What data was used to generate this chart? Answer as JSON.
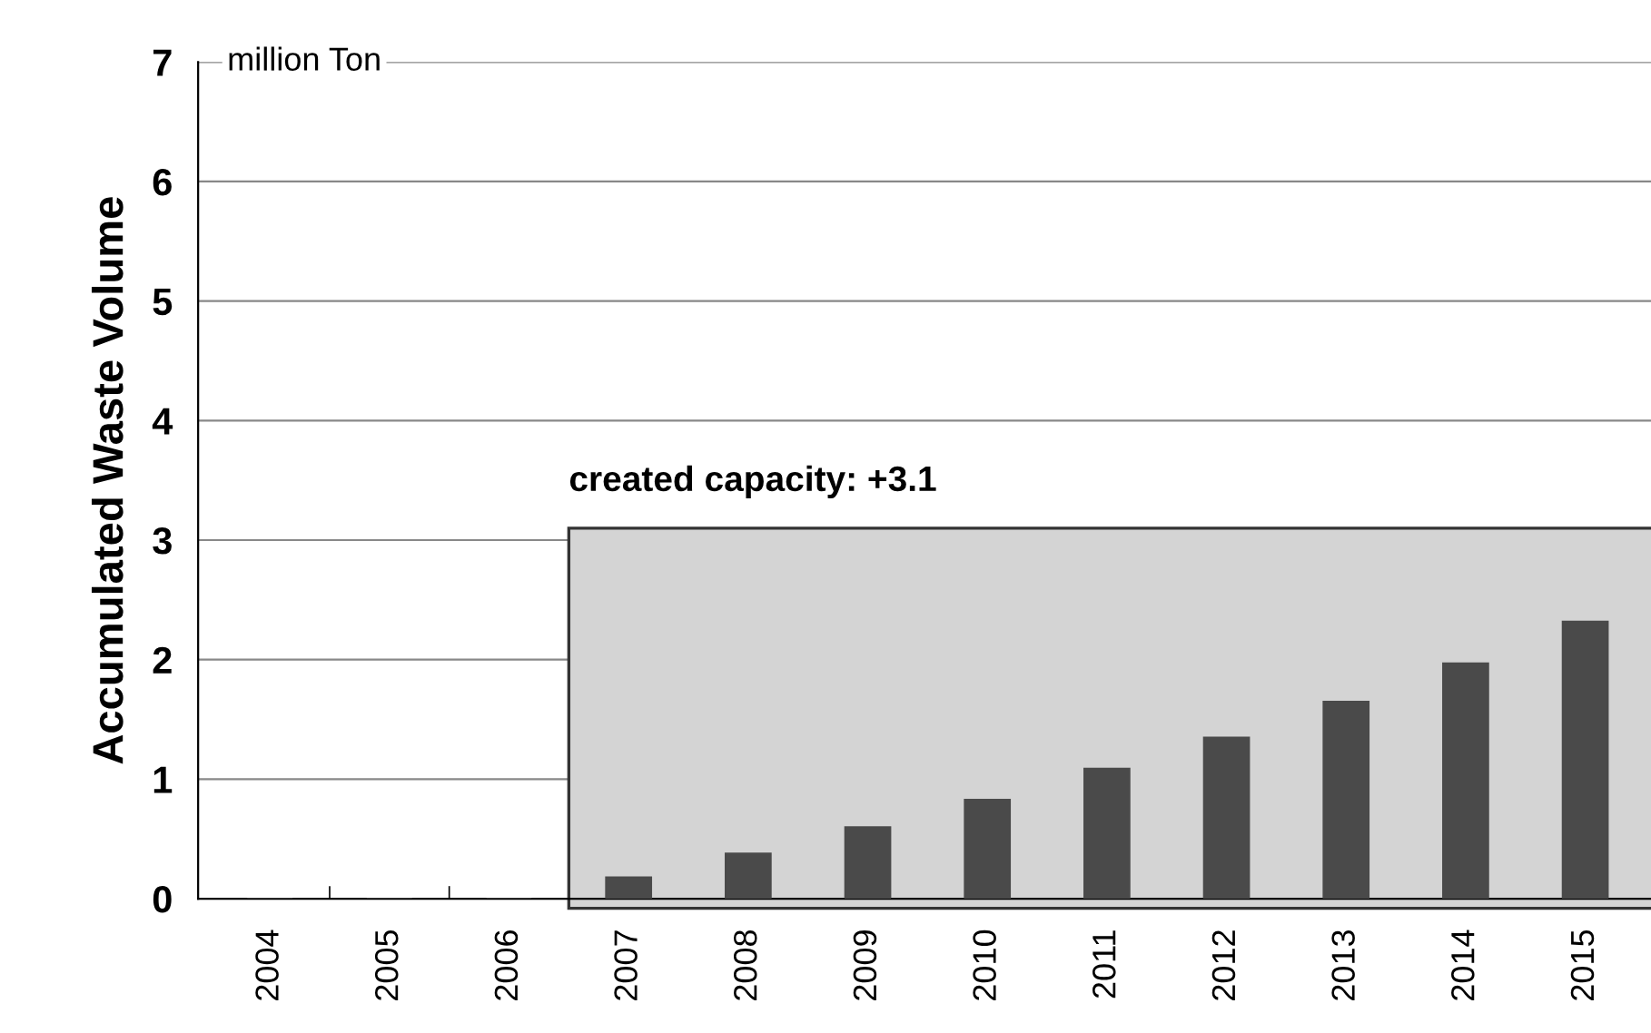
{
  "chart_data": {
    "type": "bar",
    "ylabel": "Accumulated Waste Volume",
    "categories": [
      "2004",
      "2005",
      "2006",
      "2007",
      "2008",
      "2009",
      "2010",
      "2011",
      "2012",
      "2013",
      "2014",
      "2015"
    ],
    "values": [
      0,
      0,
      0,
      0.18,
      0.38,
      0.6,
      0.83,
      1.09,
      1.35,
      1.65,
      1.97,
      2.32
    ],
    "color": "#4a4a4a",
    "ylim": [
      0,
      7
    ],
    "yticks": [
      0,
      1,
      2,
      3,
      4,
      5,
      6,
      7
    ],
    "grid": "y",
    "bands": [
      {
        "axis": "y",
        "from": 0,
        "to": 3.1,
        "label": "created capacity: +3.1",
        "color": "#d4d4d4"
      }
    ],
    "annotations": [
      "million Ton"
    ]
  }
}
